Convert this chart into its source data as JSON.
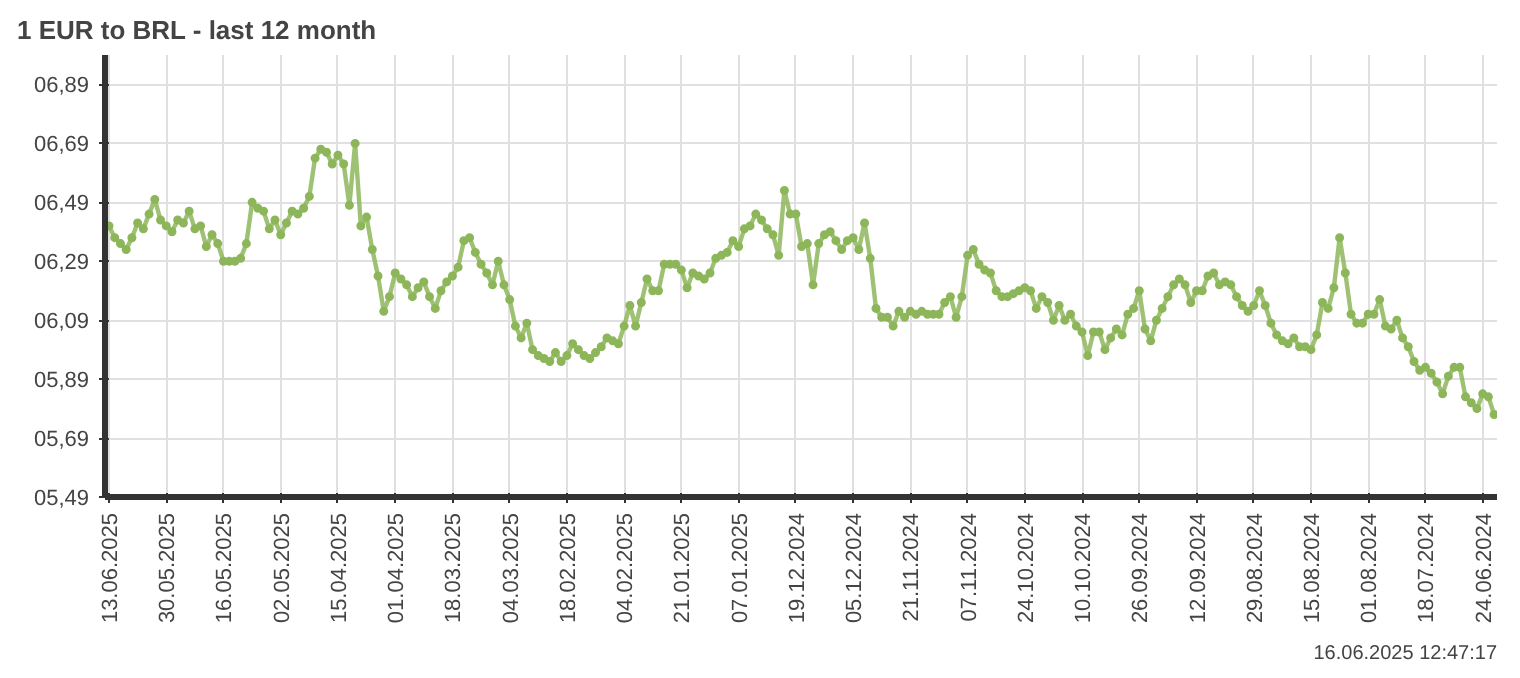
{
  "chart_data": {
    "type": "line",
    "title": "1 EUR to BRL - last 12 month",
    "annotations": [
      "16.06.2025 12:47:17"
    ],
    "categories": [
      "13.06.2025",
      null,
      null,
      null,
      null,
      null,
      null,
      null,
      null,
      null,
      "30.05.2025",
      null,
      null,
      null,
      null,
      null,
      null,
      null,
      null,
      null,
      "16.05.2025",
      null,
      null,
      null,
      null,
      null,
      null,
      null,
      null,
      null,
      "02.05.2025",
      null,
      null,
      null,
      null,
      null,
      null,
      null,
      null,
      null,
      "15.04.2025",
      null,
      null,
      null,
      null,
      null,
      null,
      null,
      null,
      null,
      "01.04.2025",
      null,
      null,
      null,
      null,
      null,
      null,
      null,
      null,
      null,
      "18.03.2025",
      null,
      null,
      null,
      null,
      null,
      null,
      null,
      null,
      null,
      "04.03.2025",
      null,
      null,
      null,
      null,
      null,
      null,
      null,
      null,
      null,
      "18.02.2025",
      null,
      null,
      null,
      null,
      null,
      null,
      null,
      null,
      null,
      "04.02.2025",
      null,
      null,
      null,
      null,
      null,
      null,
      null,
      null,
      null,
      "21.01.2025",
      null,
      null,
      null,
      null,
      null,
      null,
      null,
      null,
      null,
      "07.01.2025",
      null,
      null,
      null,
      null,
      null,
      null,
      null,
      null,
      null,
      "19.12.2024",
      null,
      null,
      null,
      null,
      null,
      null,
      null,
      null,
      null,
      "05.12.2024",
      null,
      null,
      null,
      null,
      null,
      null,
      null,
      null,
      null,
      "21.11.2024",
      null,
      null,
      null,
      null,
      null,
      null,
      null,
      null,
      null,
      "07.11.2024",
      null,
      null,
      null,
      null,
      null,
      null,
      null,
      null,
      null,
      "24.10.2024",
      null,
      null,
      null,
      null,
      null,
      null,
      null,
      null,
      null,
      "10.10.2024",
      null,
      null,
      null,
      null,
      null,
      null,
      null,
      null,
      null,
      "26.09.2024",
      null,
      null,
      null,
      null,
      null,
      null,
      null,
      null,
      null,
      "12.09.2024",
      null,
      null,
      null,
      null,
      null,
      null,
      null,
      null,
      null,
      "29.08.2024",
      null,
      null,
      null,
      null,
      null,
      null,
      null,
      null,
      null,
      "15.08.2024",
      null,
      null,
      null,
      null,
      null,
      null,
      null,
      null,
      null,
      "01.08.2024",
      null,
      null,
      null,
      null,
      null,
      null,
      null,
      null,
      null,
      "18.07.2024",
      null,
      null,
      null,
      null,
      null,
      null,
      null,
      null,
      null,
      "24.06.2024",
      null,
      null
    ],
    "series": [
      {
        "color": "#8db65a",
        "values": [
          6.41,
          6.37,
          6.35,
          6.33,
          6.37,
          6.42,
          6.4,
          6.45,
          6.5,
          6.43,
          6.41,
          6.39,
          6.43,
          6.42,
          6.46,
          6.4,
          6.41,
          6.34,
          6.38,
          6.35,
          6.29,
          6.29,
          6.29,
          6.3,
          6.35,
          6.49,
          6.47,
          6.46,
          6.4,
          6.43,
          6.38,
          6.42,
          6.46,
          6.45,
          6.47,
          6.51,
          6.64,
          6.67,
          6.66,
          6.62,
          6.65,
          6.62,
          6.48,
          6.69,
          6.41,
          6.44,
          6.33,
          6.24,
          6.12,
          6.17,
          6.25,
          6.23,
          6.21,
          6.17,
          6.2,
          6.22,
          6.17,
          6.13,
          6.19,
          6.22,
          6.24,
          6.27,
          6.36,
          6.37,
          6.32,
          6.28,
          6.25,
          6.21,
          6.29,
          6.21,
          6.16,
          6.07,
          6.03,
          6.08,
          5.99,
          5.97,
          5.96,
          5.95,
          5.98,
          5.95,
          5.97,
          6.01,
          5.99,
          5.97,
          5.96,
          5.98,
          6.0,
          6.03,
          6.02,
          6.01,
          6.07,
          6.14,
          6.07,
          6.15,
          6.23,
          6.19,
          6.19,
          6.28,
          6.28,
          6.28,
          6.26,
          6.2,
          6.25,
          6.24,
          6.23,
          6.25,
          6.3,
          6.31,
          6.32,
          6.36,
          6.34,
          6.4,
          6.41,
          6.45,
          6.43,
          6.4,
          6.38,
          6.31,
          6.53,
          6.45,
          6.45,
          6.34,
          6.35,
          6.21,
          6.35,
          6.38,
          6.39,
          6.36,
          6.33,
          6.36,
          6.37,
          6.33,
          6.42,
          6.3,
          6.13,
          6.1,
          6.1,
          6.07,
          6.12,
          6.1,
          6.12,
          6.11,
          6.12,
          6.11,
          6.11,
          6.11,
          6.15,
          6.17,
          6.1,
          6.17,
          6.31,
          6.33,
          6.28,
          6.26,
          6.25,
          6.19,
          6.17,
          6.17,
          6.18,
          6.19,
          6.2,
          6.19,
          6.13,
          6.17,
          6.15,
          6.09,
          6.14,
          6.09,
          6.11,
          6.07,
          6.05,
          5.97,
          6.05,
          6.05,
          5.99,
          6.03,
          6.06,
          6.04,
          6.11,
          6.13,
          6.19,
          6.06,
          6.02,
          6.09,
          6.13,
          6.17,
          6.21,
          6.23,
          6.21,
          6.15,
          6.19,
          6.19,
          6.24,
          6.25,
          6.21,
          6.22,
          6.21,
          6.17,
          6.14,
          6.12,
          6.14,
          6.19,
          6.14,
          6.08,
          6.04,
          6.02,
          6.01,
          6.03,
          6.0,
          6.0,
          5.99,
          6.04,
          6.15,
          6.13,
          6.2,
          6.37,
          6.25,
          6.11,
          6.08,
          6.08,
          6.11,
          6.11,
          6.16,
          6.07,
          6.06,
          6.09,
          6.03,
          6.0,
          5.95,
          5.92,
          5.93,
          5.91,
          5.88,
          5.84,
          5.9,
          5.93,
          5.93,
          5.83,
          5.81,
          5.79,
          5.84,
          5.83,
          5.77
        ]
      }
    ],
    "ylim": [
      5.49,
      6.99
    ],
    "yticks": [
      {
        "value": 5.49,
        "label": "05,49"
      },
      {
        "value": 5.69,
        "label": "05,69"
      },
      {
        "value": 5.89,
        "label": "05,89"
      },
      {
        "value": 6.09,
        "label": "06,09"
      },
      {
        "value": 6.29,
        "label": "06,29"
      },
      {
        "value": 6.49,
        "label": "06,49"
      },
      {
        "value": 6.69,
        "label": "06,69"
      },
      {
        "value": 6.89,
        "label": "06,89"
      }
    ],
    "grid": true,
    "marker": "circle",
    "line_style": "solid"
  }
}
